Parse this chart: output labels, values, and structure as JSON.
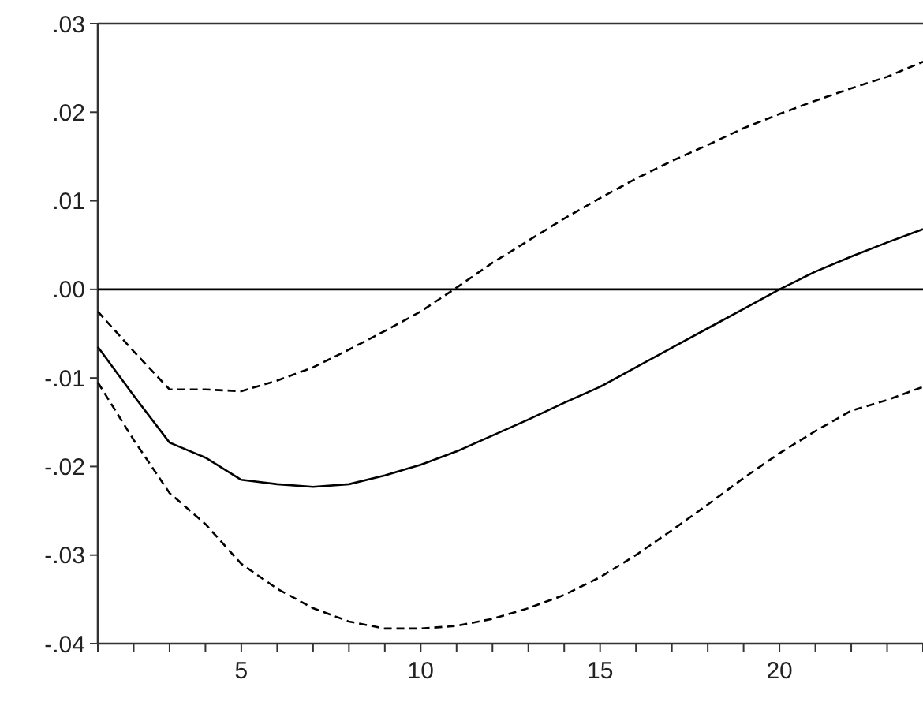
{
  "chart_data": {
    "type": "line",
    "x": [
      1,
      2,
      3,
      4,
      5,
      6,
      7,
      8,
      9,
      10,
      11,
      12,
      13,
      14,
      15,
      16,
      17,
      18,
      19,
      20,
      21,
      22,
      23,
      24
    ],
    "series": [
      {
        "color": "#000000",
        "line_style": "solid",
        "values": [
          -0.0065,
          -0.012,
          -0.0173,
          -0.019,
          -0.0215,
          -0.022,
          -0.0223,
          -0.022,
          -0.021,
          -0.0198,
          -0.0183,
          -0.0165,
          -0.0147,
          -0.0128,
          -0.011,
          -0.0088,
          -0.0066,
          -0.0044,
          -0.0022,
          0.0,
          0.002,
          0.0037,
          0.0053,
          0.0068
        ]
      },
      {
        "color": "#000000",
        "line_style": "dashed",
        "values": [
          -0.0025,
          -0.007,
          -0.0113,
          -0.0113,
          -0.0115,
          -0.0103,
          -0.0088,
          -0.0068,
          -0.0047,
          -0.0025,
          0.0002,
          0.003,
          0.0055,
          0.008,
          0.0103,
          0.0125,
          0.0145,
          0.0163,
          0.0182,
          0.0198,
          0.0213,
          0.0227,
          0.024,
          0.0257
        ]
      },
      {
        "color": "#000000",
        "line_style": "dashed",
        "values": [
          -0.0105,
          -0.017,
          -0.023,
          -0.0265,
          -0.031,
          -0.0338,
          -0.036,
          -0.0375,
          -0.0383,
          -0.0383,
          -0.038,
          -0.0372,
          -0.036,
          -0.0345,
          -0.0325,
          -0.03,
          -0.0272,
          -0.0243,
          -0.0213,
          -0.0185,
          -0.016,
          -0.0137,
          -0.0125,
          -0.011
        ]
      }
    ],
    "xlim": [
      1,
      24
    ],
    "xticks": [
      {
        "value": 1,
        "label": null
      },
      {
        "value": 2,
        "label": null
      },
      {
        "value": 3,
        "label": null
      },
      {
        "value": 4,
        "label": null
      },
      5,
      {
        "value": 6,
        "label": null
      },
      {
        "value": 7,
        "label": null
      },
      {
        "value": 8,
        "label": null
      },
      {
        "value": 9,
        "label": null
      },
      10,
      {
        "value": 11,
        "label": null
      },
      {
        "value": 12,
        "label": null
      },
      {
        "value": 13,
        "label": null
      },
      {
        "value": 14,
        "label": null
      },
      15,
      {
        "value": 16,
        "label": null
      },
      {
        "value": 17,
        "label": null
      },
      {
        "value": 18,
        "label": null
      },
      {
        "value": 19,
        "label": null
      },
      20,
      {
        "value": 21,
        "label": null
      },
      {
        "value": 22,
        "label": null
      },
      {
        "value": 23,
        "label": null
      },
      {
        "value": 24,
        "label": null
      }
    ],
    "ylim": [
      -0.04,
      0.03
    ],
    "yticks": [
      {
        "value": -0.04,
        "label": "-.04"
      },
      {
        "value": -0.03,
        "label": "-.03"
      },
      {
        "value": -0.02,
        "label": "-.02"
      },
      {
        "value": -0.01,
        "label": "-.01"
      },
      {
        "value": 0,
        "label": ".00"
      },
      {
        "value": 0.01,
        "label": ".01"
      },
      {
        "value": 0.02,
        "label": ".02"
      },
      {
        "value": 0.03,
        "label": ".03"
      }
    ],
    "ref_lines": [
      {
        "axis": "y",
        "value": 0,
        "color": "#000000"
      }
    ],
    "grid": false
  }
}
